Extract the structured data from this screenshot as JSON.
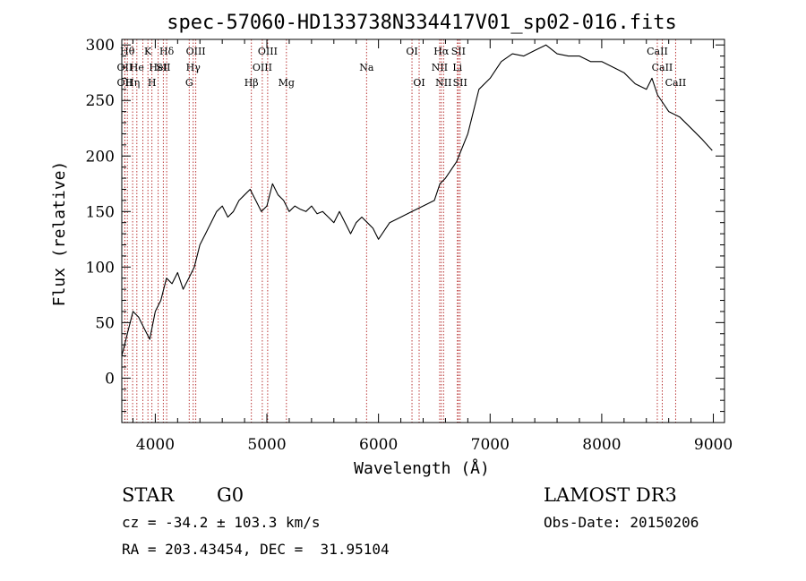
{
  "chart_data": {
    "type": "line",
    "title": "spec-57060-HD133738N334417V01_sp02-016.fits",
    "xlabel": "Wavelength (Å)",
    "ylabel": "Flux (relative)",
    "xlim": [
      3700,
      9100
    ],
    "ylim": [
      -40,
      305
    ],
    "xticks": [
      4000,
      5000,
      6000,
      7000,
      8000,
      9000
    ],
    "xtick_labels": [
      "4000",
      "5000",
      "6000",
      "7000",
      "8000",
      "9000"
    ],
    "yticks": [
      0,
      50,
      100,
      150,
      200,
      250,
      300
    ],
    "ytick_labels": [
      "0",
      "50",
      "100",
      "150",
      "200",
      "250",
      "300"
    ],
    "grid": false,
    "series": [
      {
        "name": "spectrum",
        "x": [
          3700,
          3750,
          3800,
          3850,
          3900,
          3950,
          4000,
          4050,
          4100,
          4150,
          4200,
          4250,
          4300,
          4350,
          4400,
          4450,
          4500,
          4550,
          4600,
          4650,
          4700,
          4750,
          4800,
          4850,
          4900,
          4950,
          5000,
          5050,
          5100,
          5150,
          5200,
          5250,
          5300,
          5350,
          5400,
          5450,
          5500,
          5550,
          5600,
          5650,
          5700,
          5750,
          5800,
          5850,
          5900,
          5950,
          6000,
          6100,
          6200,
          6300,
          6400,
          6500,
          6550,
          6600,
          6700,
          6800,
          6900,
          7000,
          7100,
          7200,
          7300,
          7400,
          7500,
          7600,
          7700,
          7800,
          7900,
          8000,
          8100,
          8200,
          8300,
          8400,
          8450,
          8500,
          8600,
          8700,
          8800,
          8900,
          8990
        ],
        "values": [
          20,
          40,
          60,
          55,
          45,
          35,
          60,
          70,
          90,
          85,
          95,
          80,
          90,
          100,
          120,
          130,
          140,
          150,
          155,
          145,
          150,
          160,
          165,
          170,
          160,
          150,
          155,
          175,
          165,
          160,
          150,
          155,
          152,
          150,
          155,
          148,
          150,
          145,
          140,
          150,
          140,
          130,
          140,
          145,
          140,
          135,
          125,
          140,
          145,
          150,
          155,
          160,
          175,
          180,
          195,
          220,
          260,
          270,
          285,
          292,
          290,
          295,
          300,
          292,
          290,
          290,
          285,
          285,
          280,
          275,
          265,
          260,
          270,
          255,
          240,
          235,
          225,
          215,
          205
        ]
      }
    ],
    "lines": [
      {
        "wl": 3750,
        "label": "Hθ",
        "row": 0
      },
      {
        "wl": 3727,
        "label": "OII",
        "row": 1
      },
      {
        "wl": 3727,
        "label": "OII",
        "row": 2
      },
      {
        "wl": 3797,
        "label": "Hη",
        "row": 2
      },
      {
        "wl": 3835,
        "label": "He",
        "row": 1
      },
      {
        "wl": 3889,
        "label": "",
        "row": 1
      },
      {
        "wl": 3934,
        "label": "K",
        "row": 0
      },
      {
        "wl": 3970,
        "label": "H",
        "row": 2
      },
      {
        "wl": 4026,
        "label": "HeI",
        "row": 1
      },
      {
        "wl": 4072,
        "label": "SII",
        "row": 1
      },
      {
        "wl": 4102,
        "label": "Hδ",
        "row": 0
      },
      {
        "wl": 4304,
        "label": "G",
        "row": 2
      },
      {
        "wl": 4340,
        "label": "Hγ",
        "row": 1
      },
      {
        "wl": 4363,
        "label": "OIII",
        "row": 0
      },
      {
        "wl": 4861,
        "label": "Hβ",
        "row": 2
      },
      {
        "wl": 4959,
        "label": "OIII",
        "row": 1
      },
      {
        "wl": 5007,
        "label": "OIII",
        "row": 0
      },
      {
        "wl": 5175,
        "label": "Mg",
        "row": 2
      },
      {
        "wl": 5893,
        "label": "Na",
        "row": 1
      },
      {
        "wl": 6300,
        "label": "OI",
        "row": 0
      },
      {
        "wl": 6364,
        "label": "OI",
        "row": 2
      },
      {
        "wl": 6548,
        "label": "NII",
        "row": 1
      },
      {
        "wl": 6563,
        "label": "Hα",
        "row": 0
      },
      {
        "wl": 6583,
        "label": "NII",
        "row": 2
      },
      {
        "wl": 6707,
        "label": "Li",
        "row": 1
      },
      {
        "wl": 6716,
        "label": "SII",
        "row": 0
      },
      {
        "wl": 6731,
        "label": "SII",
        "row": 2
      },
      {
        "wl": 8498,
        "label": "CaII",
        "row": 0
      },
      {
        "wl": 8542,
        "label": "CaII",
        "row": 1
      },
      {
        "wl": 8662,
        "label": "CaII",
        "row": 2
      }
    ]
  },
  "info": {
    "class": "STAR",
    "subclass": "G0",
    "survey": "LAMOST DR3",
    "redshift": "cz = -34.2 ± 103.3 km/s",
    "obsdate": "Obs-Date: 20150206",
    "coords": "RA = 203.43454, DEC =  31.95104"
  }
}
